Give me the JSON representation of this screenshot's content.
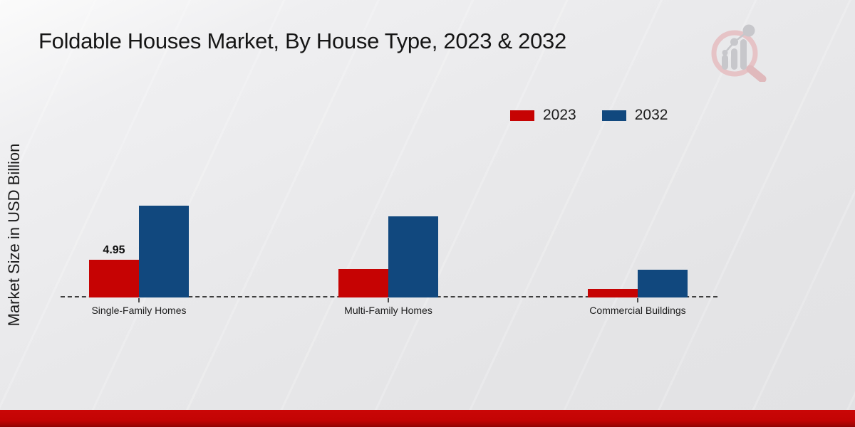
{
  "page": {
    "title": "Foldable Houses Market, By House Type, 2023 & 2032"
  },
  "y_axis": {
    "label": "Market Size in USD Billion"
  },
  "legend": {
    "items": [
      {
        "label": "2023",
        "color": "#c60303"
      },
      {
        "label": "2032",
        "color": "#11487e"
      }
    ]
  },
  "watermark": {
    "icon": "market-research-magnifier-bar-chart-logo",
    "ring_color": "#e6c3c6",
    "bars_color": "#c7c7cb"
  },
  "footer": {
    "accent_color": "#c30404"
  },
  "chart_data": {
    "type": "bar",
    "title": "Foldable Houses Market, By House Type, 2023 & 2032",
    "xlabel": "",
    "ylabel": "Market Size in USD Billion",
    "categories": [
      "Single-Family Homes",
      "Multi-Family Homes",
      "Commercial Buildings"
    ],
    "series": [
      {
        "name": "2023",
        "color": "#c60303",
        "values": [
          4.95,
          3.74,
          1.12
        ]
      },
      {
        "name": "2032",
        "color": "#11487e",
        "values": [
          12.05,
          10.65,
          3.64
        ]
      }
    ],
    "data_labels": [
      {
        "series": "2023",
        "category_index": 0,
        "text": "4.95"
      }
    ],
    "ylim": [
      0,
      13.5
    ],
    "grid": false,
    "y_ticks_visible": false,
    "legend_position": "top-right",
    "baseline_style": "dashed"
  }
}
